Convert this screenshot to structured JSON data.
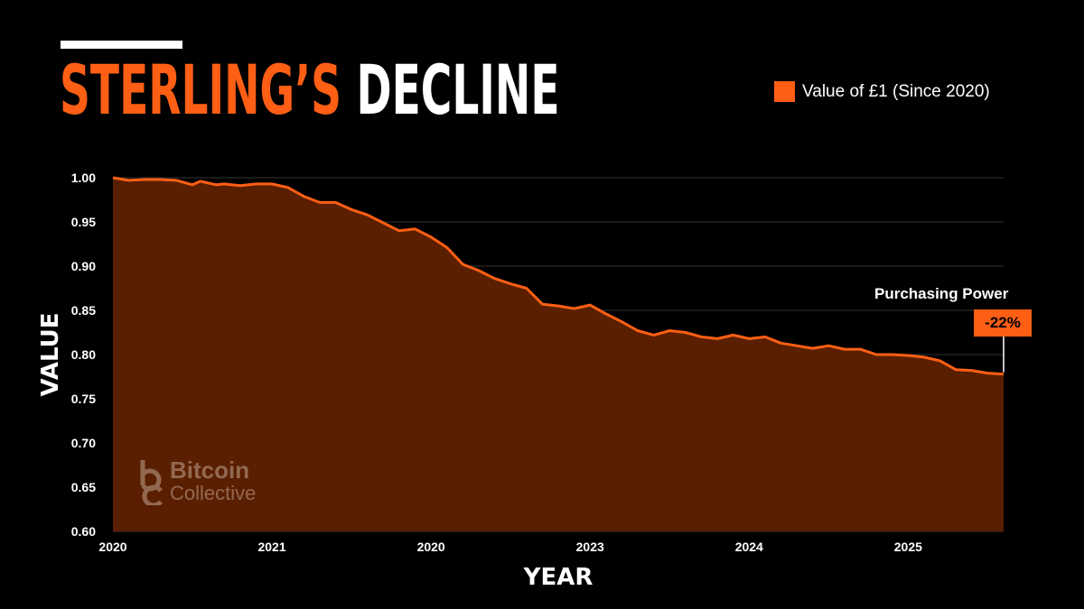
{
  "header": {
    "title_accent": "STERLING’S",
    "title_plain": "DECLINE"
  },
  "legend": {
    "label": "Value of £1 (Since 2020)"
  },
  "colors": {
    "accent": "#ff5f14",
    "fill": "#5a1f00",
    "background": "#000000"
  },
  "watermark": {
    "line1": "Bitcoin",
    "line2": "Collective"
  },
  "annotation": {
    "title": "Purchasing Power",
    "value": "-22%"
  },
  "chart_data": {
    "type": "area",
    "xlabel": "YEAR",
    "ylabel": "VALUE",
    "ylim": [
      0.6,
      1.0
    ],
    "yticks": [
      "1.00",
      "0.95",
      "0.90",
      "0.85",
      "0.80",
      "0.75",
      "0.70",
      "0.65",
      "0.60"
    ],
    "xlim": [
      0,
      5.6
    ],
    "xticks": [
      {
        "value": 0,
        "label": "2020"
      },
      {
        "value": 1,
        "label": "2021"
      },
      {
        "value": 2,
        "label": "2020"
      },
      {
        "value": 3,
        "label": "2023"
      },
      {
        "value": 4,
        "label": "2024"
      },
      {
        "value": 5,
        "label": "2025"
      }
    ],
    "grid": true,
    "legend_position": "top-right",
    "series": [
      {
        "name": "Value of £1 (Since 2020)",
        "x": [
          0,
          0.1,
          0.2,
          0.3,
          0.4,
          0.5,
          0.55,
          0.6,
          0.65,
          0.7,
          0.8,
          0.9,
          1.0,
          1.1,
          1.2,
          1.3,
          1.4,
          1.5,
          1.6,
          1.7,
          1.8,
          1.9,
          2.0,
          2.1,
          2.2,
          2.3,
          2.4,
          2.5,
          2.6,
          2.7,
          2.8,
          2.9,
          3.0,
          3.1,
          3.2,
          3.3,
          3.4,
          3.5,
          3.6,
          3.7,
          3.8,
          3.9,
          4.0,
          4.1,
          4.2,
          4.3,
          4.4,
          4.5,
          4.6,
          4.7,
          4.8,
          4.9,
          5.0,
          5.1,
          5.2,
          5.3,
          5.4,
          5.5,
          5.6
        ],
        "values": [
          1.0,
          0.997,
          0.998,
          0.998,
          0.997,
          0.992,
          0.996,
          0.994,
          0.992,
          0.993,
          0.991,
          0.993,
          0.993,
          0.989,
          0.979,
          0.972,
          0.972,
          0.964,
          0.958,
          0.949,
          0.94,
          0.942,
          0.933,
          0.921,
          0.902,
          0.895,
          0.886,
          0.88,
          0.875,
          0.857,
          0.855,
          0.852,
          0.856,
          0.846,
          0.837,
          0.827,
          0.822,
          0.827,
          0.825,
          0.82,
          0.818,
          0.822,
          0.818,
          0.82,
          0.813,
          0.81,
          0.807,
          0.81,
          0.806,
          0.806,
          0.8,
          0.8,
          0.799,
          0.797,
          0.793,
          0.783,
          0.782,
          0.779,
          0.778
        ]
      }
    ]
  }
}
